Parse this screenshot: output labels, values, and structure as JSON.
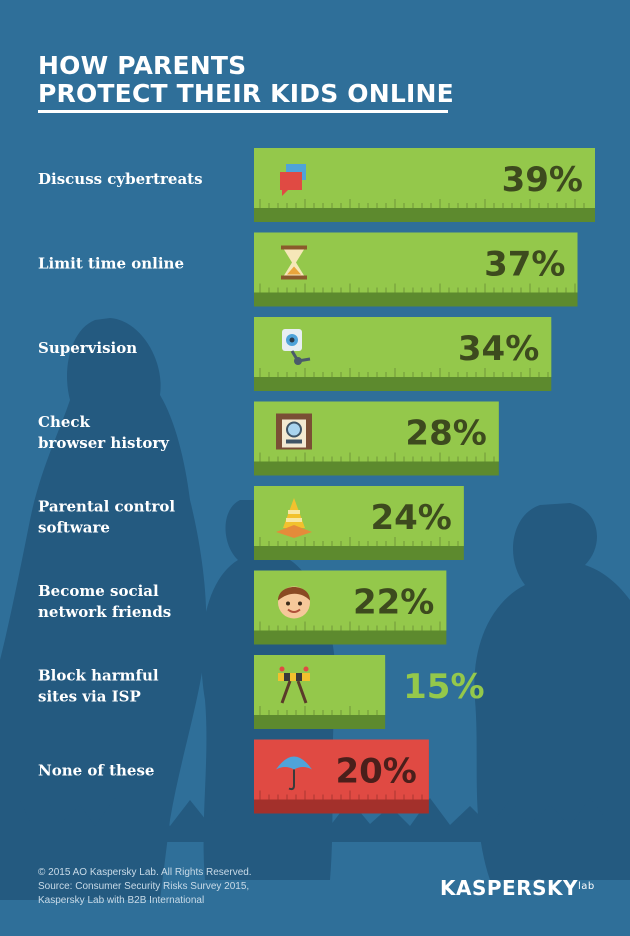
{
  "title": {
    "line1": "HOW PARENTS",
    "line2": "PROTECT THEIR KIDS ONLINE"
  },
  "chart_data": {
    "type": "bar",
    "orientation": "horizontal",
    "categories": [
      [
        "Discuss cybertreats"
      ],
      [
        "Limit time online"
      ],
      [
        "Supervision"
      ],
      [
        "Check",
        "browser history"
      ],
      [
        "Parental control",
        "software"
      ],
      [
        "Become social",
        "network friends"
      ],
      [
        "Block harmful",
        "sites via ISP"
      ],
      [
        "None of these"
      ]
    ],
    "values": [
      39,
      37,
      34,
      28,
      24,
      22,
      15,
      20
    ],
    "value_labels": [
      "39%",
      "37%",
      "34%",
      "28%",
      "24%",
      "22%",
      "15%",
      "20%"
    ],
    "icons": [
      "speech-bubbles-icon",
      "hourglass-icon",
      "webcam-icon",
      "magnifier-window-icon",
      "traffic-cone-icon",
      "child-face-icon",
      "road-barrier-icon",
      "umbrella-icon"
    ],
    "bar_colors": [
      "#94c84b",
      "#94c84b",
      "#94c84b",
      "#94c84b",
      "#94c84b",
      "#94c84b",
      "#94c84b",
      "#e04a43"
    ],
    "label_colors": [
      "#3d4a1e",
      "#3d4a1e",
      "#3d4a1e",
      "#3d4a1e",
      "#3d4a1e",
      "#3d4a1e",
      "#94c84b",
      "#4a1f1b"
    ]
  },
  "footer": {
    "copyright": "© 2015 AO Kaspersky Lab. All Rights Reserved.",
    "source_line1": "Source: Consumer Security Risks Survey 2015,",
    "source_line2": "Kaspersky Lab with B2B International"
  },
  "logo": {
    "text": "KASPERSKY",
    "sub": "lab"
  },
  "colors": {
    "background": "#2f6f99",
    "silhouette": "#245a80",
    "bar_green": "#94c84b",
    "bar_green_shadow": "#5d8a2e",
    "bar_red": "#e04a43",
    "bar_red_shadow": "#a3302b",
    "text_white": "#ffffff"
  }
}
